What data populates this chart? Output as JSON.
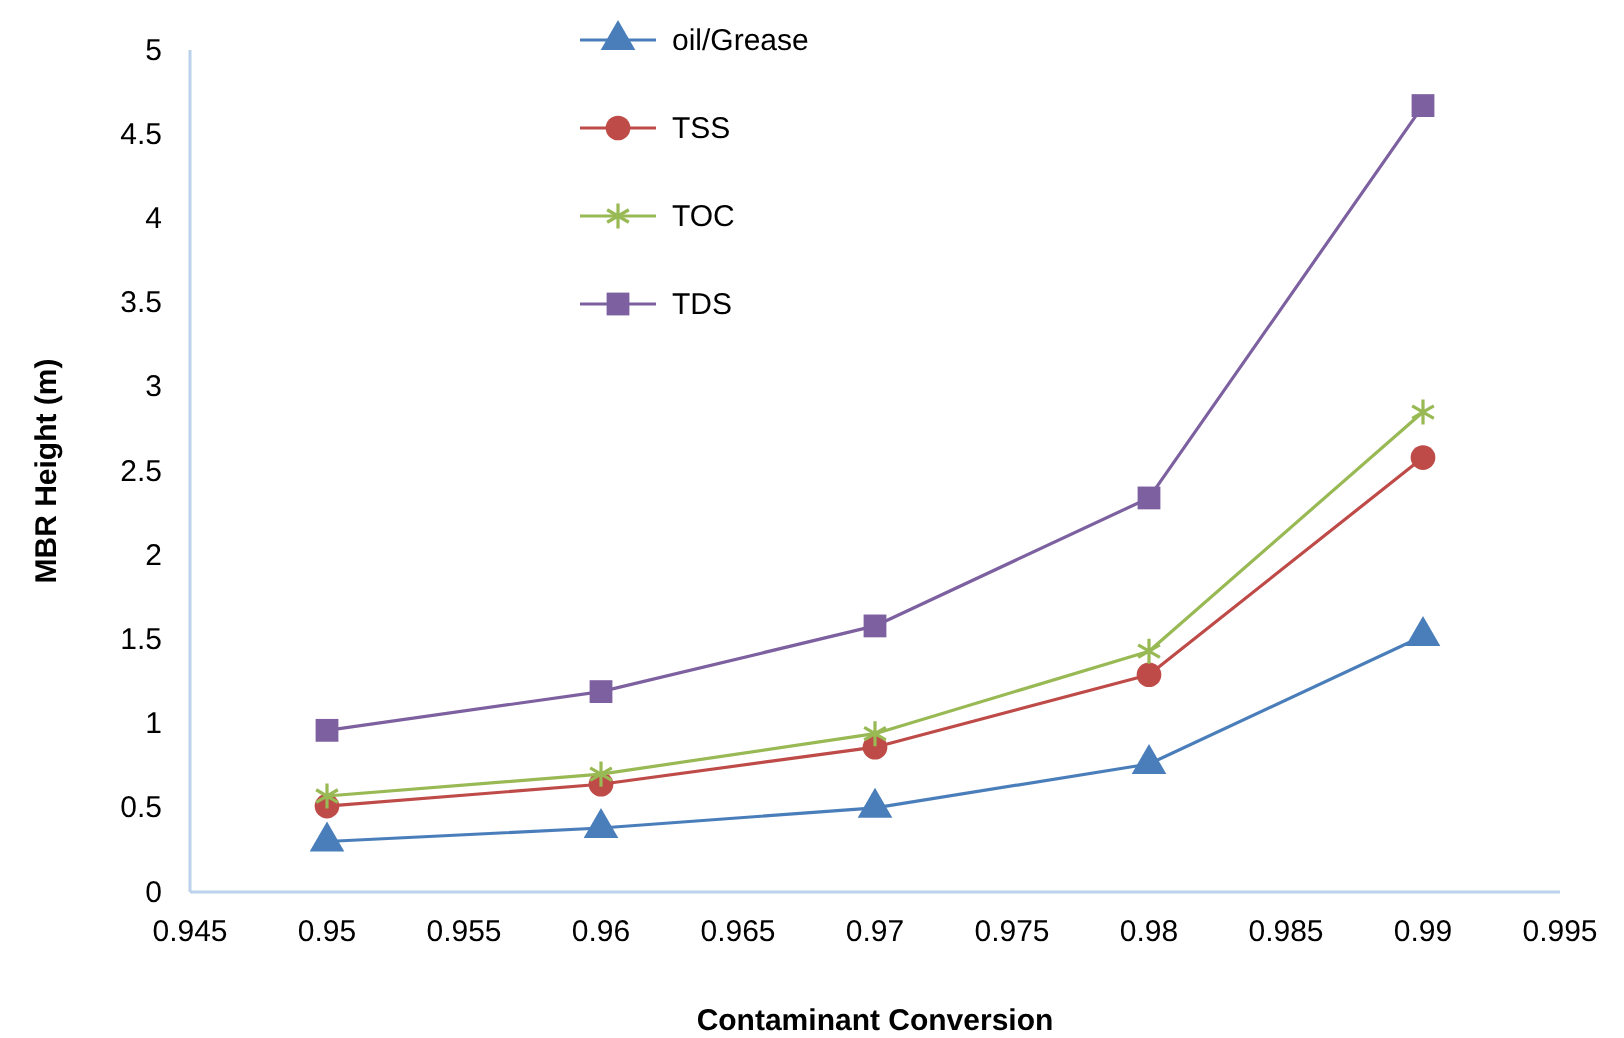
{
  "chart_data": {
    "type": "line",
    "xlabel": "Contaminant Conversion",
    "ylabel": "MBR Height (m)",
    "xlim": [
      0.945,
      0.995
    ],
    "xticks": [
      {
        "value": 0.945,
        "label": "0.945"
      },
      {
        "value": 0.95,
        "label": "0.95"
      },
      {
        "value": 0.955,
        "label": "0.955"
      },
      {
        "value": 0.96,
        "label": "0.96"
      },
      {
        "value": 0.965,
        "label": "0.965"
      },
      {
        "value": 0.97,
        "label": "0.97"
      },
      {
        "value": 0.975,
        "label": "0.975"
      },
      {
        "value": 0.98,
        "label": "0.98"
      },
      {
        "value": 0.985,
        "label": "0.985"
      },
      {
        "value": 0.99,
        "label": "0.99"
      },
      {
        "value": 0.995,
        "label": "0.995"
      }
    ],
    "ylim": [
      0,
      5
    ],
    "yticks": [
      0,
      0.5,
      1,
      1.5,
      2,
      2.5,
      3,
      3.5,
      4,
      4.5,
      5
    ],
    "x": [
      0.95,
      0.96,
      0.97,
      0.98,
      0.99
    ],
    "legend": "top",
    "grid": false,
    "series": [
      {
        "name": "oil/Grease",
        "color": "#4a7ebb",
        "marker": "triangle",
        "values": [
          0.3,
          0.38,
          0.5,
          0.76,
          1.52
        ]
      },
      {
        "name": "TSS",
        "color": "#be4b48",
        "marker": "circle",
        "values": [
          0.51,
          0.64,
          0.86,
          1.29,
          2.58
        ]
      },
      {
        "name": "TOC",
        "color": "#98b954",
        "marker": "cross",
        "values": [
          0.57,
          0.7,
          0.94,
          1.43,
          2.85
        ]
      },
      {
        "name": "TDS",
        "color": "#7d60a0",
        "marker": "square",
        "values": [
          0.96,
          1.19,
          1.58,
          2.34,
          4.67
        ]
      }
    ]
  }
}
